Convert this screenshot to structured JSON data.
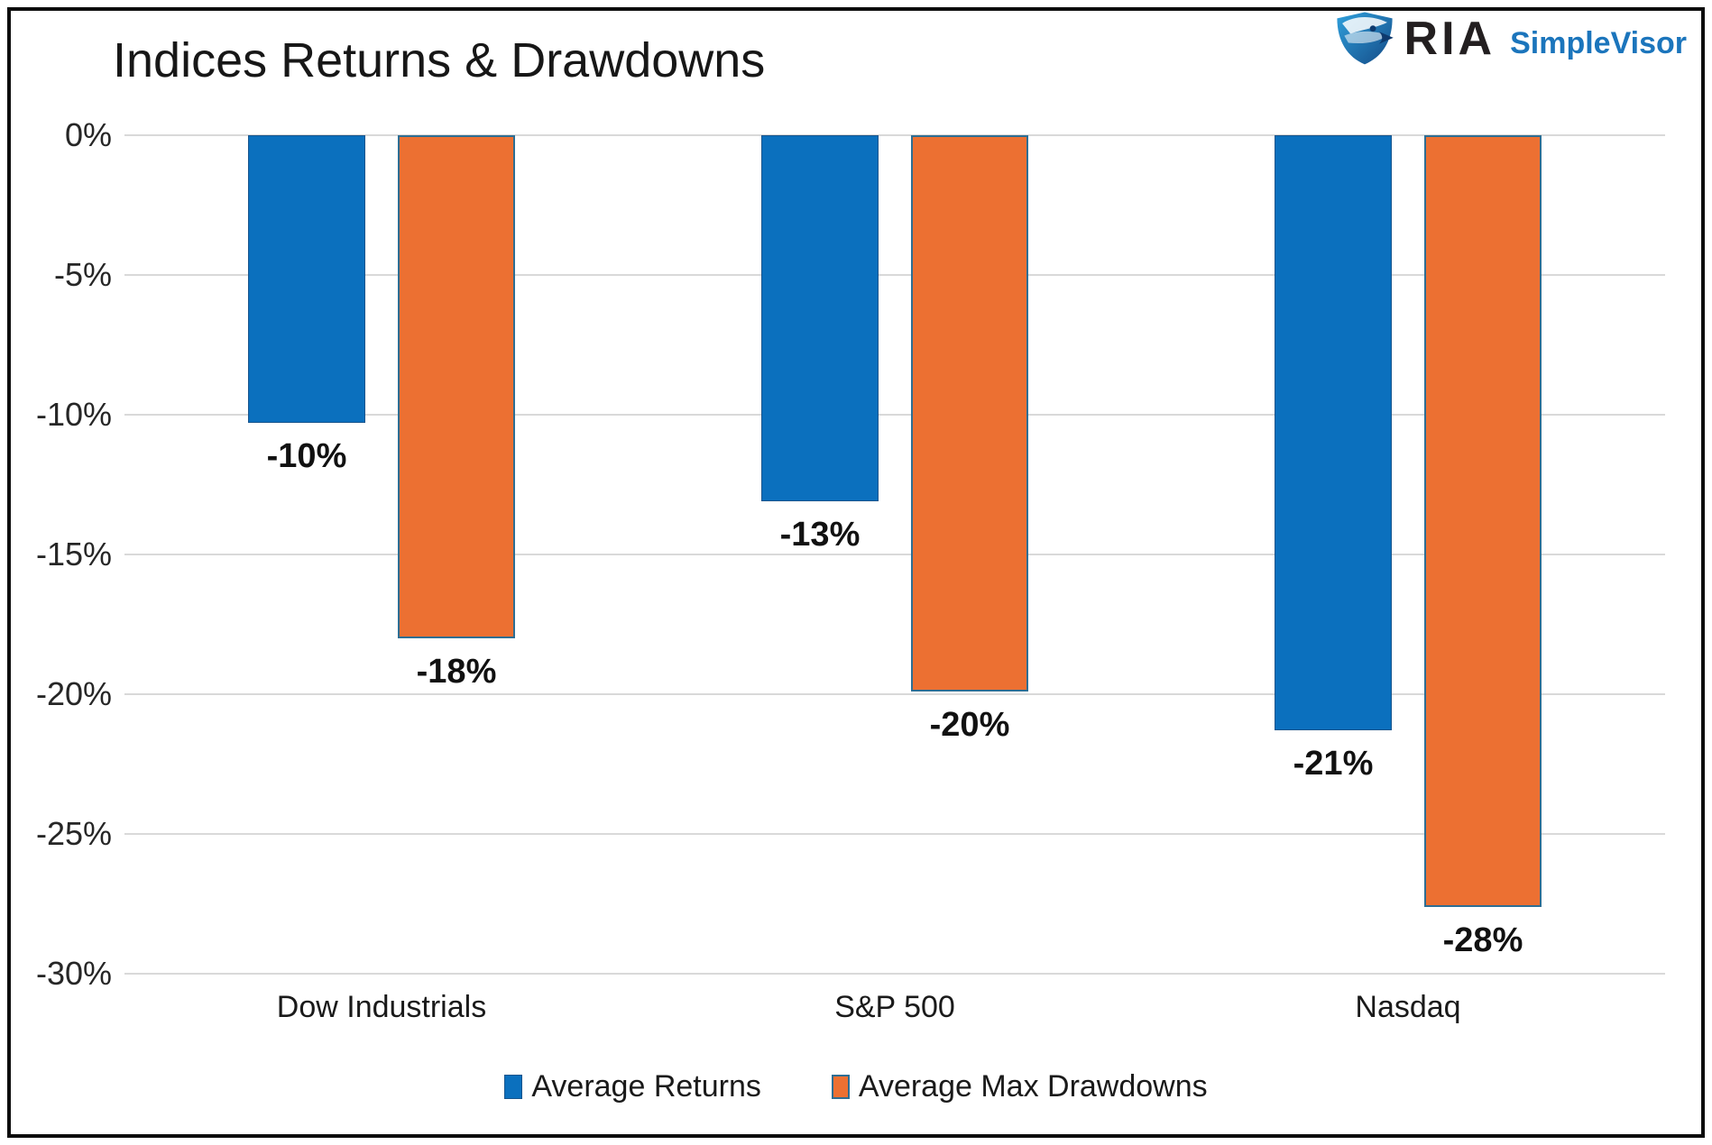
{
  "header": {
    "title": "Indices Returns & Drawdowns",
    "brand": {
      "name": "RIA",
      "product": "SimpleVisor",
      "name_color": "#231f20",
      "product_color": "#1b75bc"
    }
  },
  "colors": {
    "returns_fill": "#0b70be",
    "returns_border": "#17548c",
    "drawdowns_fill": "#ec7032",
    "drawdowns_border": "#2e6e93",
    "gridline": "#d9d9d9",
    "frame": "#0d0d0d"
  },
  "chart_data": {
    "type": "bar",
    "title": "Indices Returns & Drawdowns",
    "xlabel": "",
    "ylabel": "",
    "categories": [
      "Dow Industrials",
      "S&P 500",
      "Nasdaq"
    ],
    "series": [
      {
        "name": "Average Returns",
        "color": "#0b70be",
        "border": "#17548c",
        "values": [
          -10.3,
          -13.1,
          -21.3
        ],
        "labels": [
          "-10%",
          "-13%",
          "-21%"
        ]
      },
      {
        "name": "Average Max Drawdowns",
        "color": "#ec7032",
        "border": "#2e6e93",
        "values": [
          -18.0,
          -19.9,
          -27.6
        ],
        "labels": [
          "-18%",
          "-20%",
          "-28%"
        ]
      }
    ],
    "ylim": [
      -30,
      0
    ],
    "ytick_labels": [
      "0%",
      "-5%",
      "-10%",
      "-15%",
      "-20%",
      "-25%",
      "-30%"
    ],
    "ytick_values": [
      0,
      -5,
      -10,
      -15,
      -20,
      -25,
      -30
    ],
    "grid": true,
    "legend_position": "bottom",
    "data_labels": true
  }
}
